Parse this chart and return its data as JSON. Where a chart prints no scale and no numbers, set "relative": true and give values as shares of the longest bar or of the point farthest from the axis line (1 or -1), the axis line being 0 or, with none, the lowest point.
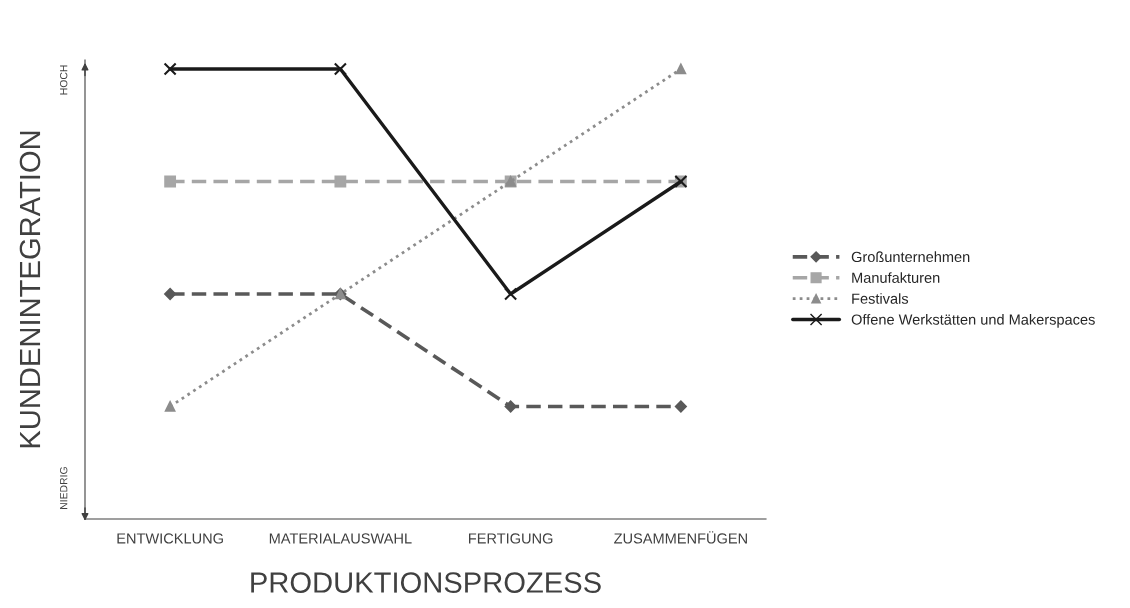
{
  "chart_data": {
    "type": "line",
    "relative": true,
    "xlabel": "PRODUKTIONSPROZESS",
    "ylabel": "KUNDENINTEGRATION",
    "categories": [
      "ENTWICKLUNG",
      "MATERIALAUSWAHL",
      "FERTIGUNG",
      "ZUSAMMENFÜGEN"
    ],
    "series": [
      {
        "name": "Großunternehmen",
        "color": "#595959",
        "line_style": "dashed",
        "marker": "diamond",
        "values": [
          0.5,
          0.5,
          0.25,
          0.25
        ]
      },
      {
        "name": "Manufakturen",
        "color": "#a6a6a6",
        "line_style": "dashed",
        "marker": "square",
        "values": [
          0.75,
          0.75,
          0.75,
          0.75
        ]
      },
      {
        "name": "Festivals",
        "color": "#8c8c8c",
        "line_style": "dotted",
        "marker": "triangle",
        "values": [
          0.25,
          0.5,
          0.75,
          1
        ]
      },
      {
        "name": "Offene Werkstätten und Makerspaces",
        "color": "#1a1a1a",
        "line_style": "solid",
        "marker": "cross",
        "values": [
          1,
          1,
          0.5,
          0.75
        ]
      }
    ],
    "annotations": [
      "HOCH",
      "NIEDRIG"
    ],
    "legend": "right",
    "grid": false
  }
}
